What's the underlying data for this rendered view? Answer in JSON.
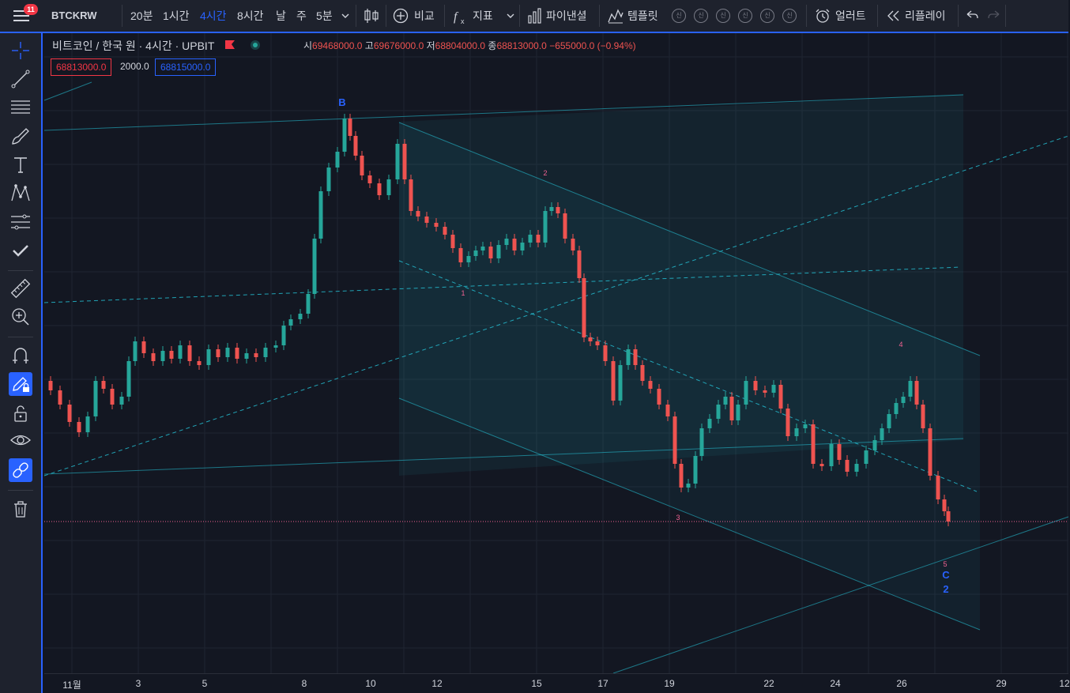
{
  "toolbar": {
    "notification_count": "11",
    "symbol": "BTCKRW",
    "intervals": [
      "20분",
      "1시간",
      "4시간",
      "8시간",
      "날",
      "주",
      "5분"
    ],
    "active_interval": "4시간",
    "compare_label": "비교",
    "indicators_label": "지표",
    "pine_label": "파이낸셜",
    "templates_label": "템플릿",
    "template_slots": [
      "신",
      "신",
      "신",
      "신",
      "신",
      "신"
    ],
    "alert_label": "얼러트",
    "replay_label": "리플레이"
  },
  "legend": {
    "title": "비트코인 / 한국 원 · 4시간 · UPBIT",
    "open_key": "시",
    "open": "69468000.0",
    "high_key": "고",
    "high": "69676000.0",
    "low_key": "저",
    "low": "68804000.0",
    "close_key": "종",
    "close": "68813000.0",
    "change": "−655000.0 (−0.94%)",
    "sell_price": "68813000.0",
    "spread": "2000.0",
    "buy_price": "68815000.0"
  },
  "wave_labels": {
    "B": "B",
    "w1": "1",
    "w2": "2",
    "w3": "3",
    "w4": "4",
    "w5": "5",
    "C": "C",
    "two": "2"
  },
  "time_axis": [
    "11월",
    "3",
    "5",
    "8",
    "10",
    "12",
    "15",
    "17",
    "19",
    "22",
    "24",
    "26",
    "29",
    "12"
  ],
  "colors": {
    "up": "#26a69a",
    "down": "#ef5350",
    "accent": "#2962ff",
    "drawing": "#26c6da",
    "wave_label": "#f06292"
  },
  "chart_data": {
    "type": "candlestick",
    "ohlc": [
      69468000.0,
      69676000.0,
      68804000.0,
      68813000.0
    ],
    "x_ticks": [
      "11월",
      "3",
      "5",
      "8",
      "10",
      "12",
      "15",
      "17",
      "19",
      "22",
      "24",
      "26",
      "29",
      "12"
    ]
  }
}
